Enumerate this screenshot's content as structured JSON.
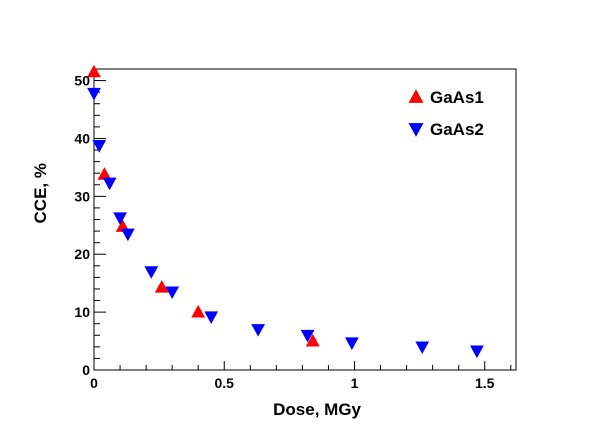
{
  "chart_data": {
    "type": "scatter",
    "title": "",
    "xlabel": "Dose, MGy",
    "ylabel": "CCE, %",
    "xlim": [
      0,
      1.62
    ],
    "ylim": [
      0,
      52
    ],
    "x_ticks": [
      0,
      0.5,
      1,
      1.5
    ],
    "x_tick_labels": [
      "0",
      "0.5",
      "1",
      "1.5"
    ],
    "y_ticks": [
      0,
      10,
      20,
      30,
      40,
      50
    ],
    "y_tick_labels": [
      "0",
      "10",
      "20",
      "30",
      "40",
      "50"
    ],
    "grid": false,
    "legend_position": "top-right",
    "series": [
      {
        "name": "GaAs1",
        "marker": "triangle-up",
        "color": "#ff0000",
        "points": [
          {
            "x": 0.0,
            "y": 51.5
          },
          {
            "x": 0.04,
            "y": 33.8
          },
          {
            "x": 0.11,
            "y": 24.8
          },
          {
            "x": 0.26,
            "y": 14.3
          },
          {
            "x": 0.4,
            "y": 10.0
          },
          {
            "x": 0.84,
            "y": 5.0
          }
        ]
      },
      {
        "name": "GaAs2",
        "marker": "triangle-down",
        "color": "#0000ff",
        "points": [
          {
            "x": 0.0,
            "y": 47.8
          },
          {
            "x": 0.02,
            "y": 38.8
          },
          {
            "x": 0.06,
            "y": 32.3
          },
          {
            "x": 0.1,
            "y": 26.3
          },
          {
            "x": 0.13,
            "y": 23.5
          },
          {
            "x": 0.22,
            "y": 17.0
          },
          {
            "x": 0.3,
            "y": 13.5
          },
          {
            "x": 0.45,
            "y": 9.2
          },
          {
            "x": 0.63,
            "y": 7.0
          },
          {
            "x": 0.82,
            "y": 6.0
          },
          {
            "x": 0.99,
            "y": 4.7
          },
          {
            "x": 1.26,
            "y": 4.0
          },
          {
            "x": 1.47,
            "y": 3.3
          }
        ]
      }
    ]
  }
}
